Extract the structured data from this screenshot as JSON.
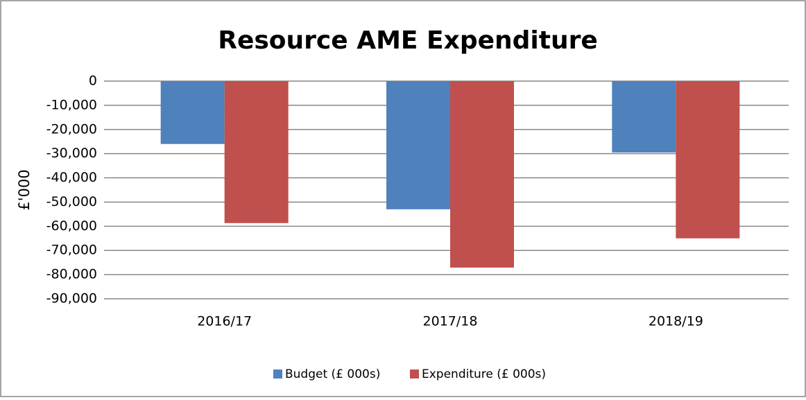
{
  "chart_data": {
    "type": "bar",
    "title": "Resource AME Expenditure",
    "ylabel": "£'000",
    "categories": [
      "2016/17",
      "2017/18",
      "2018/19"
    ],
    "series": [
      {
        "name": "Budget (£ 000s)",
        "color": "#4f81bd",
        "values": [
          -26000,
          -53000,
          -29500
        ]
      },
      {
        "name": "Expenditure (£ 000s)",
        "color": "#c0504d",
        "values": [
          -58700,
          -77100,
          -65000
        ]
      }
    ],
    "ylim": [
      -90000,
      0
    ],
    "yticks": [
      0,
      {
        "value": -10000,
        "label": "-10,000"
      },
      {
        "value": -20000,
        "label": "-20,000"
      },
      {
        "value": -30000,
        "label": "-30,000"
      },
      {
        "value": -40000,
        "label": "-40,000"
      },
      {
        "value": -50000,
        "label": "-50,000"
      },
      {
        "value": -60000,
        "label": "-60,000"
      },
      {
        "value": -70000,
        "label": "-70,000"
      },
      {
        "value": -80000,
        "label": "-80,000"
      },
      {
        "value": -90000,
        "label": "-90,000"
      }
    ],
    "grid": true,
    "legend": "bottom"
  }
}
